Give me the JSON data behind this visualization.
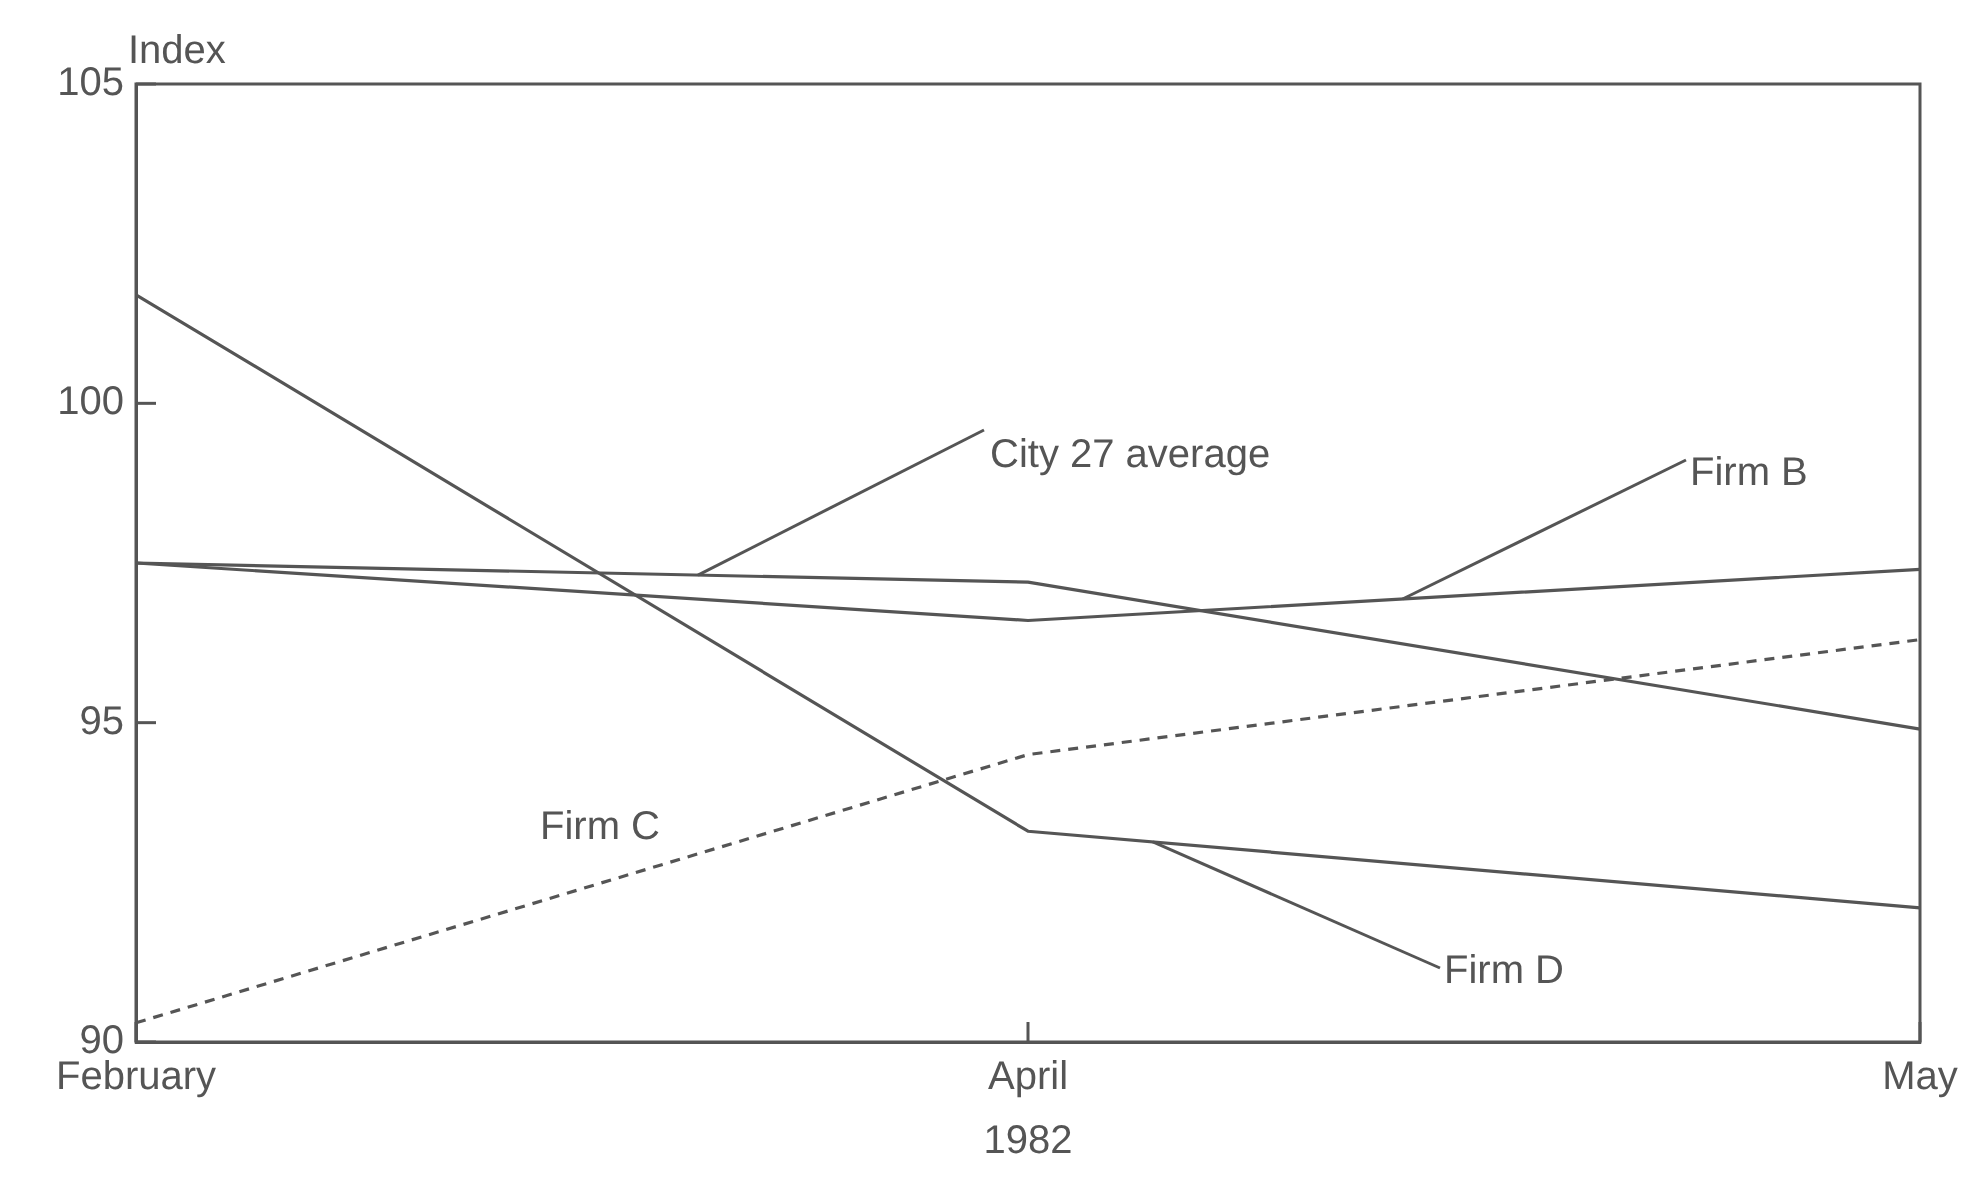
{
  "chart_data": {
    "type": "line",
    "categories": [
      "February",
      "April",
      "May"
    ],
    "xlabel": "1982",
    "ylabel": "Index",
    "ylim": [
      90,
      105
    ],
    "yticks": [
      90,
      95,
      100,
      105
    ],
    "grid": false,
    "legend": false,
    "marker": "none",
    "series": [
      {
        "name": "City 27 average",
        "color": "#555555",
        "values": [
          97.5,
          97.2,
          94.9
        ]
      },
      {
        "name": "Firm B",
        "color": "#555555",
        "values": [
          97.5,
          96.6,
          97.4
        ]
      },
      {
        "name": "Firm C",
        "color": "#555555",
        "values": [
          90.3,
          94.5,
          96.3
        ],
        "line_style": "dashed"
      },
      {
        "name": "Firm D",
        "color": "#555555",
        "values": [
          101.7,
          93.3,
          92.1
        ]
      }
    ]
  }
}
